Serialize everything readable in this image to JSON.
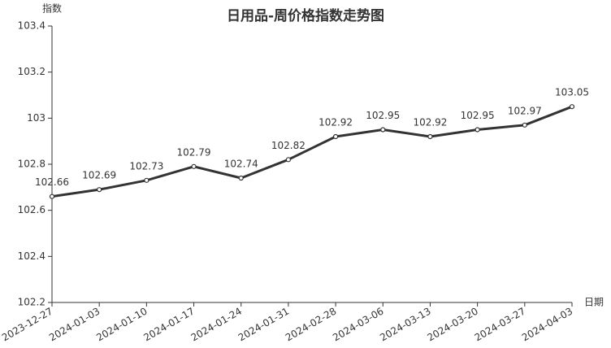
{
  "chart_data": {
    "type": "line",
    "title": "日用品-周价格指数走势图",
    "y_label": "指数",
    "x_label": "日期",
    "categories": [
      "2023-12-27",
      "2024-01-03",
      "2024-01-10",
      "2024-01-17",
      "2024-01-24",
      "2024-01-31",
      "2024-02-28",
      "2024-03-06",
      "2024-03-13",
      "2024-03-20",
      "2024-03-27",
      "2024-04-03"
    ],
    "series": [
      {
        "name": "日用品",
        "color": "#333333",
        "values": [
          102.66,
          102.69,
          102.73,
          102.79,
          102.74,
          102.82,
          102.92,
          102.95,
          102.92,
          102.95,
          102.97,
          103.05
        ]
      }
    ],
    "ylim": [
      102.2,
      103.4
    ],
    "yticks": [
      102.2,
      102.4,
      102.6,
      102.8,
      103,
      103.2,
      103.4
    ],
    "grid": false
  }
}
